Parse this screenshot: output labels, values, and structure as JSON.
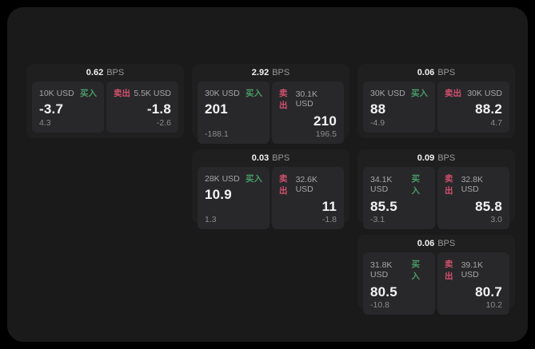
{
  "labels": {
    "bps_unit": "BPS",
    "buy": "买入",
    "sell": "卖出"
  },
  "colors": {
    "background": "#000000",
    "surface": "#1a1a1b",
    "card": "#1f1f20",
    "panel": "#28282a",
    "buy_green": "#4a9c68",
    "sell_red": "#d2506e",
    "value_white": "#f4f4f5",
    "label_gray": "#a6a6a8"
  },
  "cards": [
    {
      "bps": "0.62",
      "buy": {
        "amount": "10K USD",
        "value": "-3.7",
        "sub": "4.3"
      },
      "sell": {
        "amount": "5.5K USD",
        "value": "-1.8",
        "sub": "-2.6"
      }
    },
    {
      "bps": "2.92",
      "buy": {
        "amount": "30K USD",
        "value": "201",
        "sub": "-188.1"
      },
      "sell": {
        "amount": "30.1K USD",
        "value": "210",
        "sub": "196.5"
      }
    },
    {
      "bps": "0.06",
      "buy": {
        "amount": "30K USD",
        "value": "88",
        "sub": "-4.9"
      },
      "sell": {
        "amount": "30K USD",
        "value": "88.2",
        "sub": "4.7"
      }
    },
    {
      "bps": "0.03",
      "buy": {
        "amount": "28K USD",
        "value": "10.9",
        "sub": "1.3"
      },
      "sell": {
        "amount": "32.6K USD",
        "value": "11",
        "sub": "-1.8"
      }
    },
    {
      "bps": "0.09",
      "buy": {
        "amount": "34.1K USD",
        "value": "85.5",
        "sub": "-3.1"
      },
      "sell": {
        "amount": "32.8K USD",
        "value": "85.8",
        "sub": "3.0"
      }
    },
    {
      "bps": "0.06",
      "buy": {
        "amount": "31.8K USD",
        "value": "80.5",
        "sub": "-10.8"
      },
      "sell": {
        "amount": "39.1K USD",
        "value": "80.7",
        "sub": "10.2"
      }
    }
  ]
}
